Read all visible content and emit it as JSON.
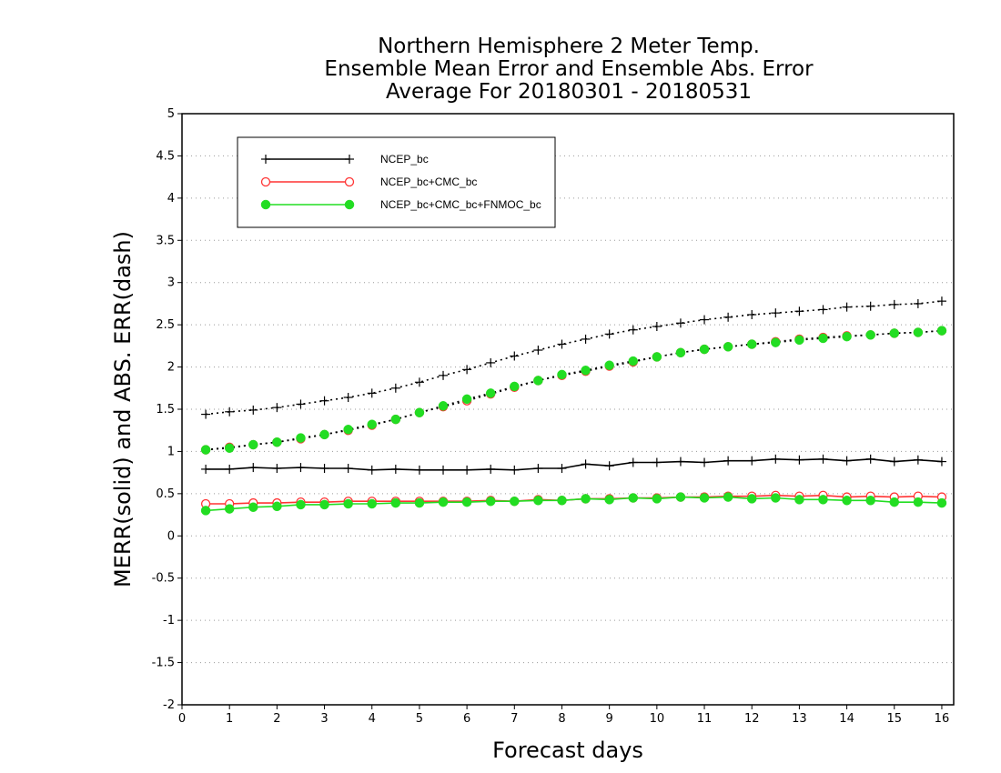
{
  "chart_data": {
    "type": "line",
    "title": [
      "Northern Hemisphere 2 Meter Temp.",
      "Ensemble Mean Error and Ensemble Abs. Error",
      "Average For 20180301 - 20180531"
    ],
    "xlabel": "Forecast days",
    "ylabel": "MERR(solid) and ABS. ERR(dash)",
    "xlim": [
      0,
      16.25
    ],
    "ylim": [
      -2,
      5
    ],
    "xticks": [
      "0",
      "1",
      "2",
      "3",
      "4",
      "5",
      "6",
      "7",
      "8",
      "9",
      "10",
      "11",
      "12",
      "13",
      "14",
      "15",
      "16"
    ],
    "yticks": [
      "-2",
      "-1.5",
      "-1",
      "-0.5",
      "0",
      "0.5",
      "1",
      "1.5",
      "2",
      "2.5",
      "3",
      "3.5",
      "4",
      "4.5",
      "5"
    ],
    "grid": true,
    "legend_position": "top-left",
    "legend_entries": [
      "NCEP_bc",
      "NCEP_bc+CMC_bc",
      "NCEP_bc+CMC_bc+FNMOC_bc"
    ],
    "x": [
      0.5,
      1,
      1.5,
      2,
      2.5,
      3,
      3.5,
      4,
      4.5,
      5,
      5.5,
      6,
      6.5,
      7,
      7.5,
      8,
      8.5,
      9,
      9.5,
      10,
      10.5,
      11,
      11.5,
      12,
      12.5,
      13,
      13.5,
      14,
      14.5,
      15,
      15.5,
      16
    ],
    "series": [
      {
        "name": "NCEP_bc",
        "style": "dash",
        "marker": "plus",
        "color": "#000000",
        "values": [
          1.44,
          1.47,
          1.49,
          1.52,
          1.56,
          1.6,
          1.64,
          1.69,
          1.75,
          1.82,
          1.9,
          1.97,
          2.05,
          2.13,
          2.2,
          2.27,
          2.33,
          2.39,
          2.44,
          2.48,
          2.52,
          2.56,
          2.59,
          2.62,
          2.64,
          2.66,
          2.68,
          2.71,
          2.72,
          2.74,
          2.75,
          2.78
        ]
      },
      {
        "name": "NCEP_bc",
        "style": "solid",
        "marker": "plus",
        "color": "#000000",
        "values": [
          0.79,
          0.79,
          0.81,
          0.8,
          0.81,
          0.8,
          0.8,
          0.78,
          0.79,
          0.78,
          0.78,
          0.78,
          0.79,
          0.78,
          0.8,
          0.8,
          0.85,
          0.83,
          0.87,
          0.87,
          0.88,
          0.87,
          0.89,
          0.89,
          0.91,
          0.9,
          0.91,
          0.89,
          0.91,
          0.88,
          0.9,
          0.88
        ]
      },
      {
        "name": "NCEP_bc+CMC_bc",
        "style": "dash",
        "marker": "open-circle",
        "color": "#ff3333",
        "values": [
          1.02,
          1.05,
          1.08,
          1.11,
          1.15,
          1.2,
          1.25,
          1.31,
          1.38,
          1.46,
          1.53,
          1.6,
          1.68,
          1.76,
          1.84,
          1.9,
          1.95,
          2.01,
          2.06,
          2.12,
          2.17,
          2.21,
          2.24,
          2.27,
          2.3,
          2.33,
          2.35,
          2.37,
          2.38,
          2.4,
          2.41,
          2.43
        ]
      },
      {
        "name": "NCEP_bc+CMC_bc",
        "style": "solid",
        "marker": "open-circle",
        "color": "#ff3333",
        "values": [
          0.38,
          0.38,
          0.39,
          0.39,
          0.4,
          0.4,
          0.41,
          0.41,
          0.41,
          0.41,
          0.41,
          0.41,
          0.42,
          0.41,
          0.43,
          0.42,
          0.44,
          0.44,
          0.45,
          0.45,
          0.46,
          0.46,
          0.47,
          0.47,
          0.48,
          0.47,
          0.48,
          0.46,
          0.47,
          0.46,
          0.47,
          0.46
        ]
      },
      {
        "name": "NCEP_bc+CMC_bc+FNMOC_bc",
        "style": "dash",
        "marker": "filled-circle",
        "color": "#22dd22",
        "values": [
          1.02,
          1.04,
          1.08,
          1.11,
          1.16,
          1.2,
          1.26,
          1.32,
          1.38,
          1.46,
          1.54,
          1.62,
          1.69,
          1.77,
          1.84,
          1.91,
          1.96,
          2.02,
          2.07,
          2.12,
          2.17,
          2.21,
          2.24,
          2.27,
          2.29,
          2.32,
          2.34,
          2.36,
          2.38,
          2.4,
          2.41,
          2.43
        ]
      },
      {
        "name": "NCEP_bc+CMC_bc+FNMOC_bc",
        "style": "solid",
        "marker": "filled-circle",
        "color": "#22dd22",
        "values": [
          0.3,
          0.32,
          0.34,
          0.35,
          0.37,
          0.37,
          0.38,
          0.38,
          0.39,
          0.39,
          0.4,
          0.4,
          0.41,
          0.41,
          0.42,
          0.42,
          0.44,
          0.43,
          0.45,
          0.44,
          0.46,
          0.45,
          0.46,
          0.44,
          0.45,
          0.43,
          0.43,
          0.42,
          0.42,
          0.4,
          0.4,
          0.39
        ]
      }
    ]
  }
}
